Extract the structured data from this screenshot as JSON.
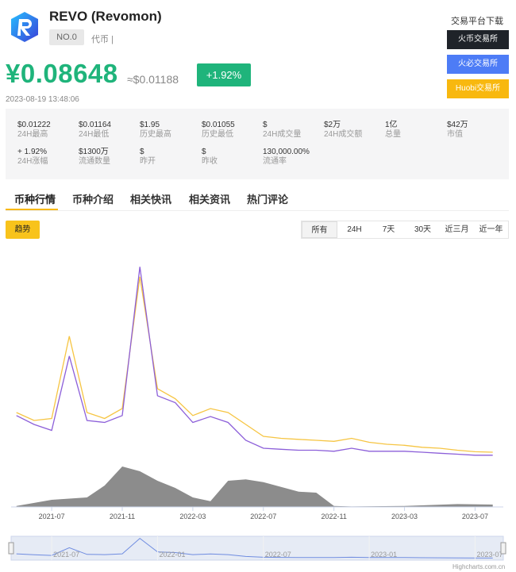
{
  "coin": {
    "name": "REVO (Revomon)",
    "rank": "NO.0",
    "tag": "代币 |"
  },
  "exchanges": {
    "title": "交易平台下载",
    "items": [
      "火币交易所",
      "火必交易所",
      "Huobi交易所"
    ],
    "colors": [
      "#1f2329",
      "#4d7cf6",
      "#f8b80f"
    ]
  },
  "price": {
    "cny": "¥0.08648",
    "usd": "≈$0.01188",
    "change": "+1.92%",
    "time": "2023-08-19 13:48:06",
    "up_color": "#1fb47b"
  },
  "stats": [
    {
      "value": "$0.01222",
      "label": "24H最高"
    },
    {
      "value": "$0.01164",
      "label": "24H最低"
    },
    {
      "value": "$1.95",
      "label": "历史最高"
    },
    {
      "value": "$0.01055",
      "label": "历史最低"
    },
    {
      "value": "$",
      "label": "24H成交量"
    },
    {
      "value": "$2万",
      "label": "24H成交额"
    },
    {
      "value": "1亿",
      "label": "总量"
    },
    {
      "value": "$42万",
      "label": "市值"
    },
    {
      "value": "+ 1.92%",
      "label": "24H涨幅"
    },
    {
      "value": "$1300万",
      "label": "流通数量"
    },
    {
      "value": "$",
      "label": "昨开"
    },
    {
      "value": "$",
      "label": "昨收"
    },
    {
      "value": "130,000.00%",
      "label": "流通率"
    }
  ],
  "tabs": [
    "币种行情",
    "币种介绍",
    "相关快讯",
    "相关资讯",
    "热门评论"
  ],
  "chart_controls": {
    "trend": "趋势",
    "ranges": [
      "所有",
      "24H",
      "7天",
      "30天",
      "近三月",
      "近一年"
    ],
    "selected": "所有"
  },
  "chart_data": {
    "type": "line",
    "x_ticks": [
      "2021-07",
      "2021-11",
      "2022-03",
      "2022-07",
      "2022-11",
      "2023-03",
      "2023-07"
    ],
    "navigator_ticks": [
      "2021-07",
      "2022-01",
      "2022-07",
      "2023-01",
      "2023-07"
    ],
    "series": [
      {
        "color": "#f6c543",
        "x": [
          "2021-05",
          "2021-06",
          "2021-07",
          "2021-08",
          "2021-09",
          "2021-10",
          "2021-11",
          "2021-12",
          "2022-01",
          "2022-02",
          "2022-03",
          "2022-04",
          "2022-05",
          "2022-06",
          "2022-07",
          "2022-08",
          "2022-09",
          "2022-10",
          "2022-11",
          "2022-12",
          "2023-01",
          "2023-02",
          "2023-03",
          "2023-04",
          "2023-05",
          "2023-06",
          "2023-07",
          "2023-08"
        ],
        "values": [
          0.48,
          0.4,
          0.42,
          1.25,
          0.48,
          0.42,
          0.52,
          1.85,
          0.72,
          0.62,
          0.45,
          0.52,
          0.48,
          0.36,
          0.24,
          0.22,
          0.21,
          0.2,
          0.19,
          0.22,
          0.18,
          0.16,
          0.15,
          0.13,
          0.12,
          0.1,
          0.085,
          0.08
        ]
      },
      {
        "color": "#8c5fd9",
        "x": [
          "2021-05",
          "2021-06",
          "2021-07",
          "2021-08",
          "2021-09",
          "2021-10",
          "2021-11",
          "2021-12",
          "2022-01",
          "2022-02",
          "2022-03",
          "2022-04",
          "2022-05",
          "2022-06",
          "2022-07",
          "2022-08",
          "2022-09",
          "2022-10",
          "2022-11",
          "2022-12",
          "2023-01",
          "2023-02",
          "2023-03",
          "2023-04",
          "2023-05",
          "2023-06",
          "2023-07",
          "2023-08"
        ],
        "values": [
          0.45,
          0.36,
          0.3,
          1.05,
          0.4,
          0.38,
          0.45,
          1.95,
          0.65,
          0.58,
          0.38,
          0.44,
          0.38,
          0.2,
          0.12,
          0.11,
          0.1,
          0.1,
          0.09,
          0.12,
          0.09,
          0.09,
          0.09,
          0.08,
          0.07,
          0.06,
          0.05,
          0.05
        ]
      }
    ],
    "volume": {
      "color": "#8c8c8c",
      "x": [
        "2021-05",
        "2021-07",
        "2021-09",
        "2021-10",
        "2021-11",
        "2021-12",
        "2022-01",
        "2022-02",
        "2022-03",
        "2022-04",
        "2022-05",
        "2022-06",
        "2022-07",
        "2022-08",
        "2022-09",
        "2022-10",
        "2022-11",
        "2022-12",
        "2023-03",
        "2023-06",
        "2023-08"
      ],
      "values": [
        0.02,
        0.15,
        0.2,
        0.45,
        0.85,
        0.75,
        0.55,
        0.4,
        0.2,
        0.12,
        0.55,
        0.58,
        0.52,
        0.42,
        0.32,
        0.3,
        0.02,
        0.01,
        0.02,
        0.06,
        0.05
      ]
    },
    "credit": "Highcharts.com.cn"
  }
}
